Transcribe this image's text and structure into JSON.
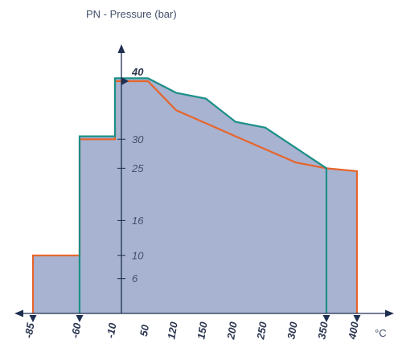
{
  "chart_data": {
    "type": "area",
    "ylabel": "PN - Pressure (bar)",
    "xunit": "°C",
    "yticks": [
      6,
      10,
      16,
      25,
      30
    ],
    "y_highlight": "40",
    "xticks": [
      "-85",
      "-60",
      "-10",
      "50",
      "120",
      "150",
      "200",
      "250",
      "300",
      "350",
      "400"
    ],
    "ylim": [
      0,
      42
    ],
    "colors": {
      "fill": "#a7b3d0",
      "orange": "#e8642a",
      "teal": "#1d8f87",
      "axis": "#1f2f52",
      "tickline": "#ffffff"
    },
    "series": [
      {
        "color_key": "orange",
        "points": [
          [
            -85,
            0
          ],
          [
            -85,
            10
          ],
          [
            -60,
            10
          ],
          [
            -60,
            30
          ],
          [
            -10,
            30
          ],
          [
            -10,
            40
          ],
          [
            50,
            40
          ],
          [
            120,
            35
          ],
          [
            200,
            30.5
          ],
          [
            300,
            26
          ],
          [
            350,
            25
          ],
          [
            400,
            24.5
          ],
          [
            400,
            0
          ]
        ]
      },
      {
        "color_key": "teal",
        "points": [
          [
            -60,
            0
          ],
          [
            -60,
            30.5
          ],
          [
            -10,
            30.5
          ],
          [
            -10,
            40.5
          ],
          [
            50,
            40.5
          ],
          [
            120,
            38
          ],
          [
            150,
            37
          ],
          [
            200,
            33
          ],
          [
            250,
            32
          ],
          [
            300,
            28.5
          ],
          [
            350,
            25
          ],
          [
            350,
            0
          ]
        ]
      }
    ]
  }
}
